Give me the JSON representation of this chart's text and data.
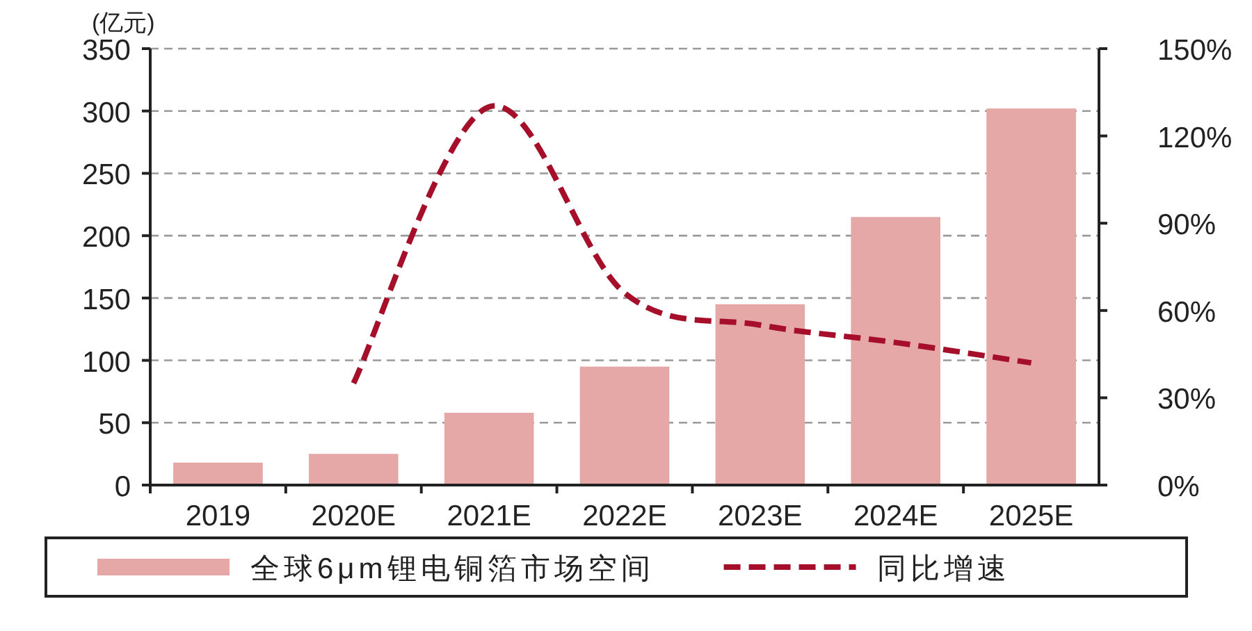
{
  "chart_data": {
    "type": "bar",
    "ylabel": "(亿元)",
    "categories": [
      "2019",
      "2020E",
      "2021E",
      "2022E",
      "2023E",
      "2024E",
      "2025E"
    ],
    "series": [
      {
        "name": "全球6μm锂电铜箔市场空间",
        "color": "#e6a7a7",
        "values": [
          18,
          25,
          58,
          95,
          145,
          215,
          302
        ]
      },
      {
        "name": "同比增速",
        "type": "line",
        "axis": "y2",
        "color": "#a50f2a",
        "line_style": "dashed",
        "values": [
          null,
          35,
          130,
          66,
          55,
          49,
          42
        ]
      }
    ],
    "ylim": [
      0,
      350
    ],
    "yticks": [
      0,
      50,
      100,
      150,
      200,
      250,
      300,
      350
    ],
    "y2lim": [
      0,
      150
    ],
    "y2ticks": [
      {
        "value": 0,
        "label": "0%"
      },
      {
        "value": 30,
        "label": "30%"
      },
      {
        "value": 60,
        "label": "60%"
      },
      {
        "value": 90,
        "label": "90%"
      },
      {
        "value": 120,
        "label": "120%"
      },
      {
        "value": 150,
        "label": "150%"
      }
    ],
    "grid": "y",
    "legend": "bottom"
  }
}
